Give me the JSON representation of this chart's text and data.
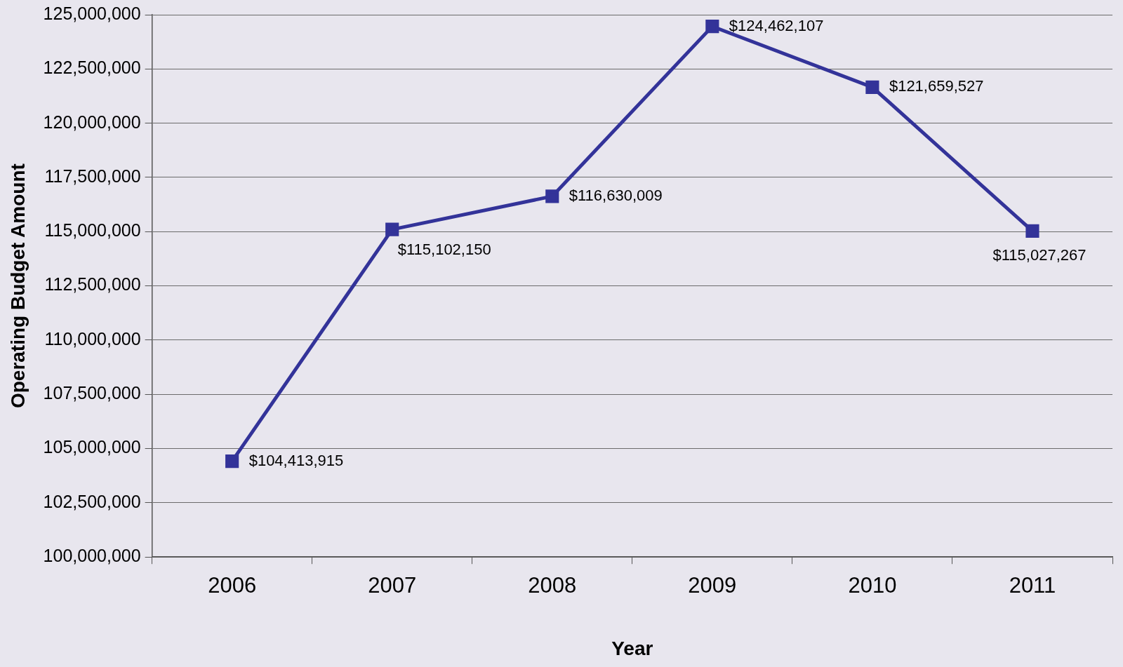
{
  "chart_data": {
    "type": "line",
    "xlabel": "Year",
    "ylabel": "Operating Budget Amount",
    "categories": [
      "2006",
      "2007",
      "2008",
      "2009",
      "2010",
      "2011"
    ],
    "series": [
      {
        "color": "#333399",
        "values": [
          104413915,
          115102150,
          116630009,
          124462107,
          121659527,
          115027267
        ],
        "value_labels": [
          "$104,413,915",
          "$115,102,150",
          "$116,630,009",
          "$124,462,107",
          "$121,659,527",
          "$115,027,267"
        ]
      }
    ],
    "ylim": [
      100000000,
      125000000
    ],
    "yticks": [
      {
        "value": 100000000,
        "label": "100,000,000"
      },
      {
        "value": 102500000,
        "label": "102,500,000"
      },
      {
        "value": 105000000,
        "label": "105,000,000"
      },
      {
        "value": 107500000,
        "label": "107,500,000"
      },
      {
        "value": 110000000,
        "label": "110,000,000"
      },
      {
        "value": 112500000,
        "label": "112,500,000"
      },
      {
        "value": 115000000,
        "label": "115,000,000"
      },
      {
        "value": 117500000,
        "label": "117,500,000"
      },
      {
        "value": 120000000,
        "label": "120,000,000"
      },
      {
        "value": 122500000,
        "label": "122,500,000"
      },
      {
        "value": 125000000,
        "label": "125,000,000"
      }
    ],
    "grid": "y",
    "legend": false,
    "marker": "square",
    "line_style": "solid"
  }
}
